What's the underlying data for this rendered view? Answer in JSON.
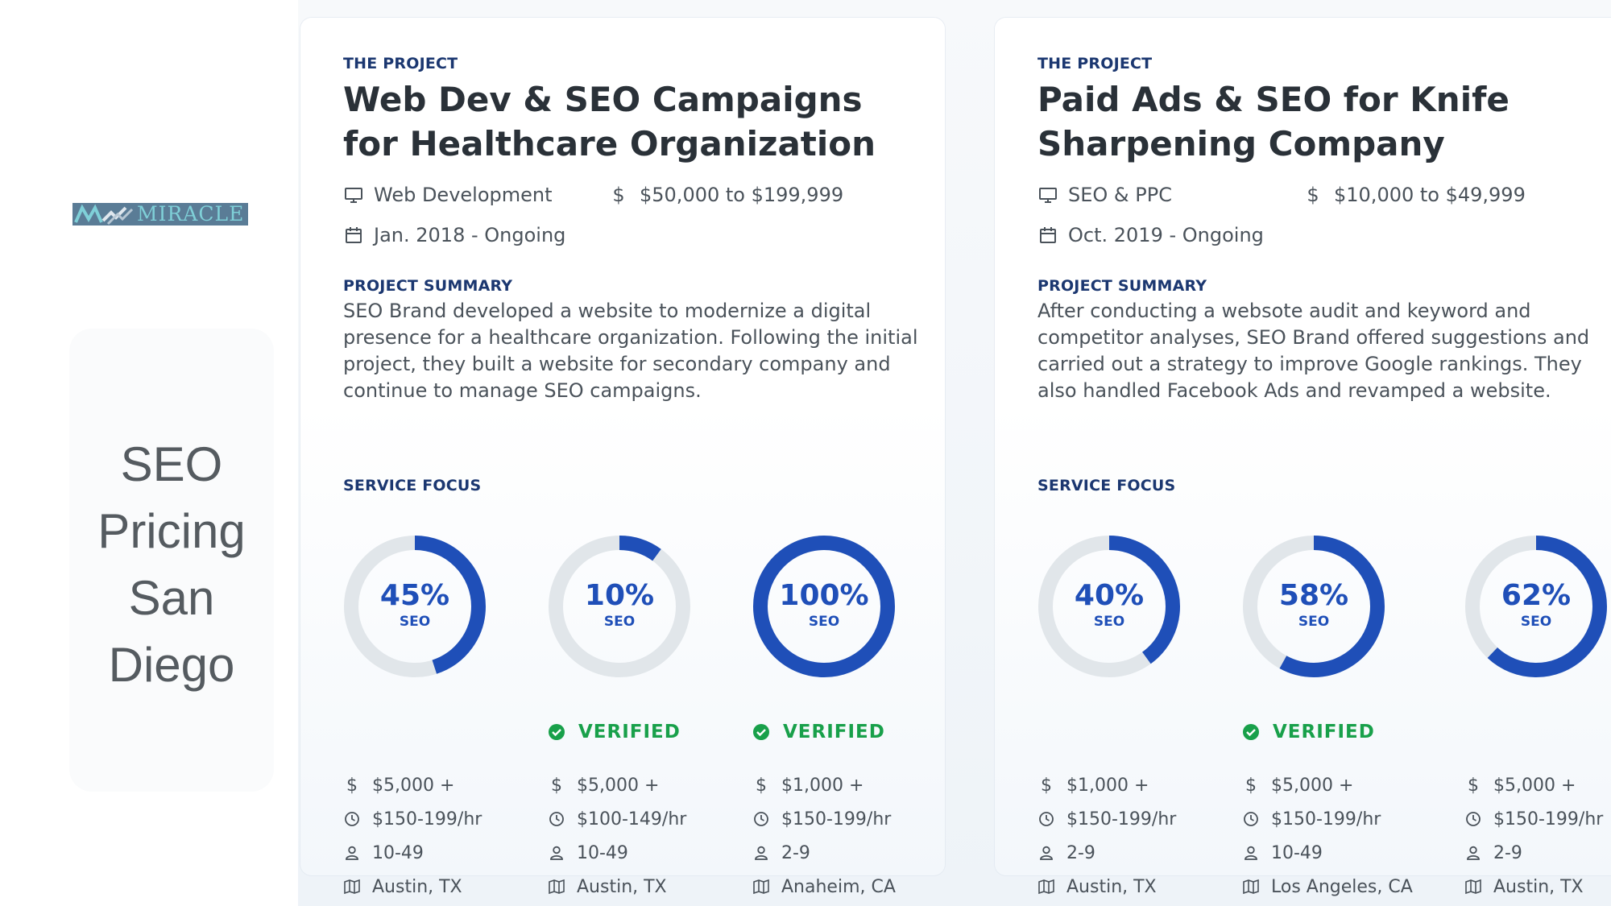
{
  "brand": {
    "logo_text": "MIRACLE",
    "colors": {
      "logo_bg": "#5a7c96",
      "logo_text": "#7fd0d8"
    }
  },
  "side": {
    "title_lines": [
      "SEO",
      "Pricing",
      "San",
      "Diego"
    ]
  },
  "colors": {
    "accent": "#1f4fb8",
    "ring_track": "#e1e6ea",
    "verified": "#18a04a",
    "heading": "#1b3770"
  },
  "cards": [
    {
      "project_label": "THE PROJECT",
      "title": "Web Dev & SEO Campaigns for Healthcare Organization",
      "service": "Web Development",
      "budget": "$50,000 to $199,999",
      "dates": "Jan. 2018 - Ongoing",
      "summary_label": "PROJECT SUMMARY",
      "summary": "SEO Brand developed a website to modernize a digital presence for a healthcare organization. Following the initial project, they built a website for secondary company and continue to manage SEO campaigns.",
      "focus_label": "SERVICE FOCUS",
      "providers": [
        {
          "percent": 45,
          "percent_label": "45%",
          "sub": "SEO",
          "verified": false,
          "verified_label": "",
          "min_project": "$5,000 +",
          "rate": "$150-199/hr",
          "size": "10-49",
          "location": "Austin, TX"
        },
        {
          "percent": 10,
          "percent_label": "10%",
          "sub": "SEO",
          "verified": true,
          "verified_label": "VERIFIED",
          "min_project": "$5,000 +",
          "rate": "$100-149/hr",
          "size": "10-49",
          "location": "Austin, TX"
        },
        {
          "percent": 100,
          "percent_label": "100%",
          "sub": "SEO",
          "verified": true,
          "verified_label": "VERIFIED",
          "min_project": "$1,000 +",
          "rate": "$150-199/hr",
          "size": "2-9",
          "location": "Anaheim, CA"
        }
      ]
    },
    {
      "project_label": "THE PROJECT",
      "title": "Paid Ads & SEO for Knife Sharpening Company",
      "service": "SEO & PPC",
      "budget": "$10,000 to $49,999",
      "dates": "Oct. 2019 - Ongoing",
      "summary_label": "PROJECT SUMMARY",
      "summary": "After conducting a websote audit and keyword and competitor analyses, SEO Brand offered suggestions and carried out a strategy to improve Google rankings. They also handled Facebook Ads and revamped a website.",
      "focus_label": "SERVICE FOCUS",
      "providers": [
        {
          "percent": 40,
          "percent_label": "40%",
          "sub": "SEO",
          "verified": false,
          "verified_label": "",
          "min_project": "$1,000 +",
          "rate": "$150-199/hr",
          "size": "2-9",
          "location": "Austin, TX"
        },
        {
          "percent": 58,
          "percent_label": "58%",
          "sub": "SEO",
          "verified": true,
          "verified_label": "VERIFIED",
          "min_project": "$5,000 +",
          "rate": "$150-199/hr",
          "size": "10-49",
          "location": "Los Angeles, CA"
        },
        {
          "percent": 62,
          "percent_label": "62%",
          "sub": "SEO",
          "verified": false,
          "verified_label": "",
          "min_project": "$5,000 +",
          "rate": "$150-199/hr",
          "size": "2-9",
          "location": "Austin, TX"
        }
      ]
    }
  ],
  "icons": {
    "service": "monitor-icon",
    "budget": "dollar-icon",
    "dates": "calendar-icon",
    "rate": "clock-icon",
    "size": "user-icon",
    "location": "map-icon",
    "verified": "check-circle-icon"
  }
}
